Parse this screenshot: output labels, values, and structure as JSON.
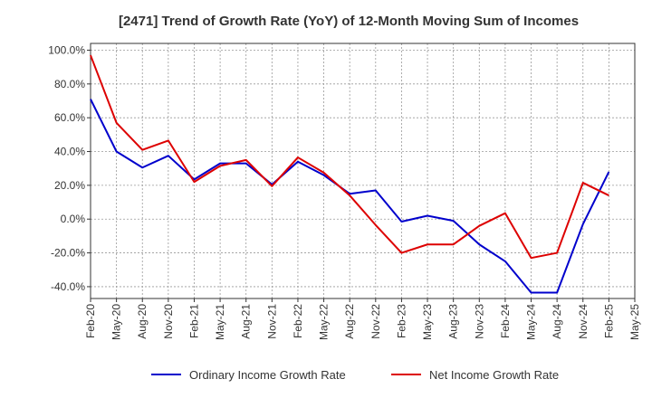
{
  "chart_data": {
    "type": "line",
    "title": "[2471]  Trend of Growth Rate (YoY) of 12-Month Moving Sum of Incomes",
    "xlabel": "",
    "ylabel": "",
    "ylim": [
      -47,
      104
    ],
    "y_ticks": [
      {
        "value": 100,
        "label": "100.0%"
      },
      {
        "value": 80,
        "label": "80.0%"
      },
      {
        "value": 60,
        "label": "60.0%"
      },
      {
        "value": 40,
        "label": "40.0%"
      },
      {
        "value": 20,
        "label": "20.0%"
      },
      {
        "value": 0,
        "label": "0.0%"
      },
      {
        "value": -20,
        "label": "-20.0%"
      },
      {
        "value": -40,
        "label": "-40.0%"
      }
    ],
    "x_ticks": [
      "Feb-20",
      "May-20",
      "Aug-20",
      "Nov-20",
      "Feb-21",
      "May-21",
      "Aug-21",
      "Nov-21",
      "Feb-22",
      "May-22",
      "Aug-22",
      "Nov-22",
      "Feb-23",
      "May-23",
      "Aug-23",
      "Nov-23",
      "Feb-24",
      "May-24",
      "Aug-24",
      "Nov-24",
      "Feb-25",
      "May-25"
    ],
    "grid": true,
    "legend_position": "bottom",
    "series": [
      {
        "name": "Ordinary Income Growth Rate",
        "color": "#0000cc",
        "values": [
          71,
          40,
          30.5,
          37.5,
          23.5,
          33,
          33,
          20.5,
          34,
          26,
          15,
          17,
          -1.5,
          2,
          -1,
          -15,
          -25,
          -43.5,
          -43.5,
          -3,
          28
        ]
      },
      {
        "name": "Net Income Growth Rate",
        "color": "#dd0000",
        "values": [
          97,
          57,
          41,
          46.5,
          22,
          31.5,
          35,
          19.5,
          36.5,
          27.5,
          14,
          -3.5,
          -20,
          -15,
          -15,
          -4,
          3.5,
          -23,
          -20,
          21.5,
          14
        ]
      }
    ]
  }
}
